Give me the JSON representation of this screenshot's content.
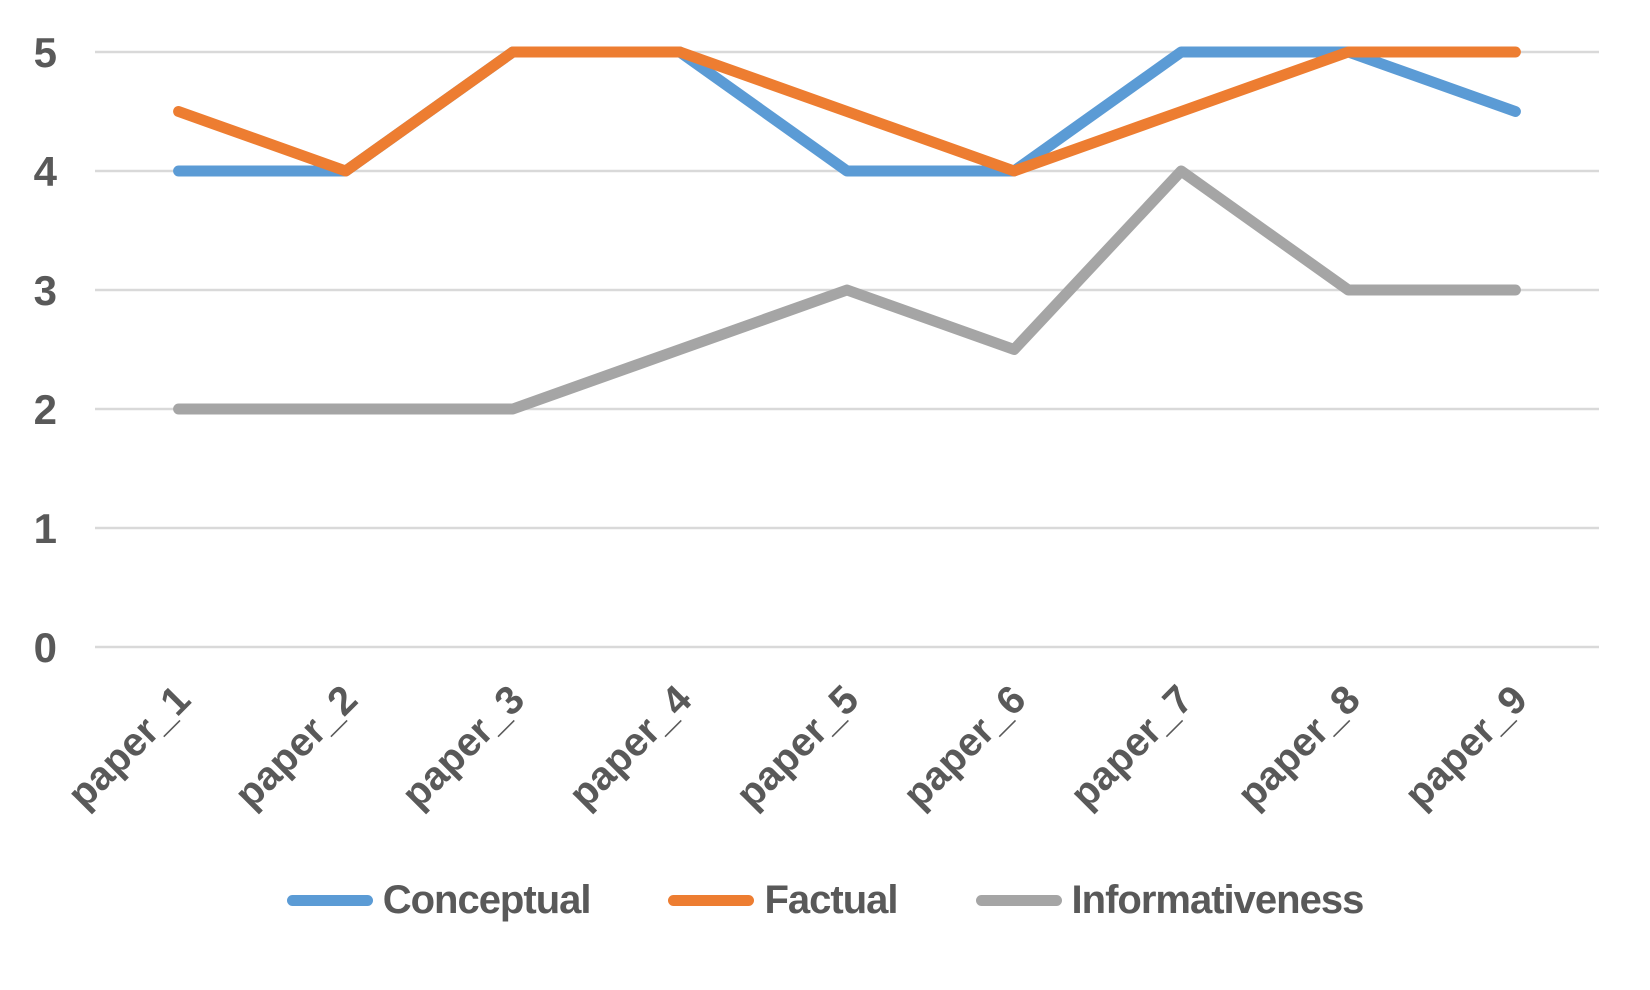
{
  "chart_data": {
    "type": "line",
    "title": "",
    "xlabel": "",
    "ylabel": "",
    "categories": [
      "paper_1",
      "paper_2",
      "paper_3",
      "paper_4",
      "paper_5",
      "paper_6",
      "paper_7",
      "paper_8",
      "paper_9"
    ],
    "series": [
      {
        "name": "Conceptual",
        "color": "#5B9BD5",
        "values": [
          4,
          4,
          5,
          5,
          4,
          4,
          5,
          5,
          4.5
        ]
      },
      {
        "name": "Factual",
        "color": "#ED7D31",
        "values": [
          4.5,
          4,
          5,
          5,
          4.5,
          4,
          4.5,
          5,
          5
        ]
      },
      {
        "name": "Informativeness",
        "color": "#A5A5A5",
        "values": [
          2,
          2,
          2,
          2.5,
          3,
          2.5,
          4,
          3,
          3
        ]
      }
    ],
    "yticks": [
      "0",
      "1",
      "2",
      "3",
      "4",
      "5"
    ],
    "ylim": [
      0,
      5
    ],
    "grid": true,
    "legend_position": "bottom",
    "x_tick_rotation_deg": 45,
    "colors": {
      "axis_text": "#595959",
      "gridline": "#D9D9D9",
      "background": "#FFFFFF"
    }
  }
}
